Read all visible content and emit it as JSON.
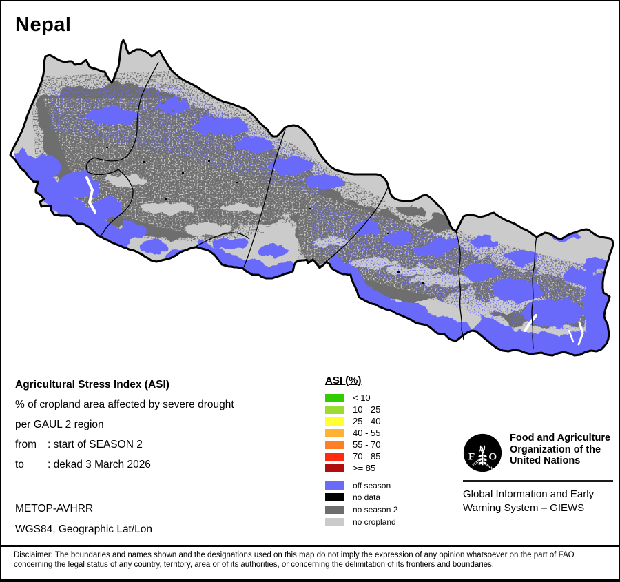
{
  "title": "Nepal",
  "map": {
    "colors": {
      "off_season": "#6B6BFA",
      "no_data": "#000000",
      "no_season2": "#6E6E6E",
      "no_cropland": "#CBCBCB",
      "border": "#000000",
      "river": "#FFFFFF"
    }
  },
  "info": {
    "heading": "Agricultural Stress Index (ASI)",
    "line1": "% of cropland area affected by severe drought",
    "line2": "per GAUL 2 region",
    "from_label": "from",
    "from_value": ": start of SEASON 2",
    "to_label": "to",
    "to_value": ": dekad 3 March 2026",
    "sensor": "METOP-AVHRR",
    "projection": "WGS84, Geographic Lat/Lon"
  },
  "asi_legend": {
    "title": "ASI (%)",
    "classes": [
      {
        "label": "< 10",
        "color": "#33CC00"
      },
      {
        "label": "10 - 25",
        "color": "#9CDB33"
      },
      {
        "label": "25 - 40",
        "color": "#FFFF33"
      },
      {
        "label": "40 - 55",
        "color": "#FFB133"
      },
      {
        "label": "55 - 70",
        "color": "#FF7F26"
      },
      {
        "label": "70 - 85",
        "color": "#FF2B0D"
      },
      {
        "label": ">= 85",
        "color": "#B00E0E"
      }
    ]
  },
  "status_legend": {
    "classes": [
      {
        "label": "off season",
        "color": "#6B6BFA"
      },
      {
        "label": "no data",
        "color": "#000000"
      },
      {
        "label": "no season 2",
        "color": "#6E6E6E"
      },
      {
        "label": "no cropland",
        "color": "#CBCBCB"
      }
    ]
  },
  "fao": {
    "logo_letters": [
      "F",
      "A",
      "O"
    ],
    "logo_motto": [
      "FIAT",
      "PANIS"
    ],
    "org_lines": [
      "Food and Agriculture",
      "Organization of the",
      "United Nations"
    ],
    "giews_lines": [
      "Global Information and Early",
      "Warning System – GIEWS"
    ]
  },
  "disclaimer_lines": [
    "Disclaimer: The boundaries and names shown and the designations used on this map do not imply the expression of any opinion whatsoever on the part of FAO",
    "concerning the legal status of any country, territory, area or of its authorities, or concerning the delimitation of its frontiers and boundaries."
  ]
}
